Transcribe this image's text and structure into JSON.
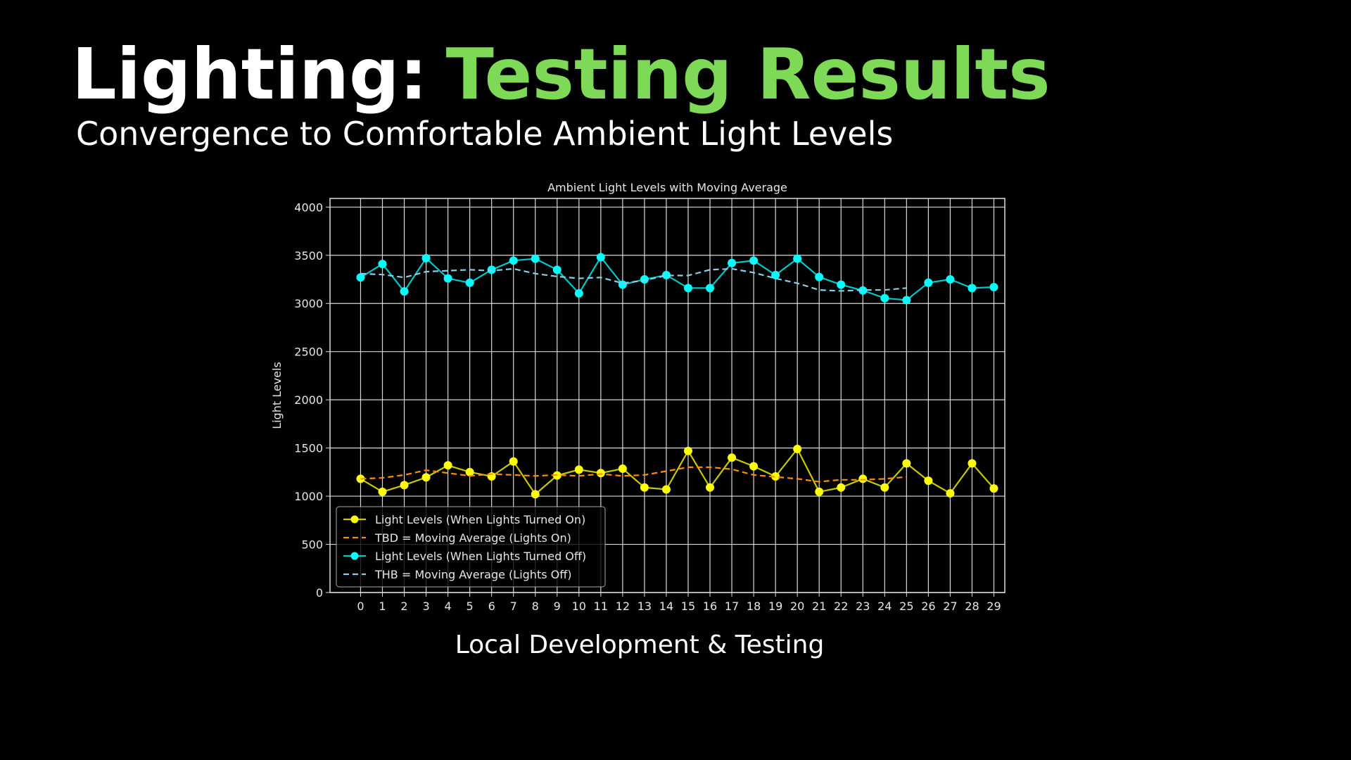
{
  "slide": {
    "title_prefix": "Lighting:",
    "title_highlight": "Testing Results",
    "subtitle": "Convergence to Comfortable Ambient Light Levels",
    "caption": "Local Development & Testing"
  },
  "chart_data": {
    "type": "line",
    "title": "Ambient Light Levels with Moving Average",
    "y_label": "Light Levels",
    "x": [
      0,
      1,
      2,
      3,
      4,
      5,
      6,
      7,
      8,
      9,
      10,
      11,
      12,
      13,
      14,
      15,
      16,
      17,
      18,
      19,
      20,
      21,
      22,
      23,
      24,
      25,
      26,
      27,
      28,
      29
    ],
    "xlim": [
      -1.4,
      29.5
    ],
    "xticks": [
      0,
      1,
      2,
      3,
      4,
      5,
      6,
      7,
      8,
      9,
      10,
      11,
      12,
      13,
      14,
      15,
      16,
      17,
      18,
      19,
      20,
      21,
      22,
      23,
      24,
      25,
      26,
      27,
      28,
      29
    ],
    "ylim": [
      0,
      4090
    ],
    "yticks": [
      0,
      500,
      1000,
      1500,
      2000,
      2500,
      3000,
      3500,
      4000
    ],
    "grid": true,
    "legend": "lower left",
    "series": [
      {
        "name": "Light Levels (When Lights Turned On)",
        "color": "#ffff00",
        "line_color": "#c8c800",
        "style": "solid",
        "marker": true,
        "values": [
          1180,
          1045,
          1115,
          1195,
          1320,
          1250,
          1205,
          1360,
          1020,
          1215,
          1275,
          1240,
          1285,
          1090,
          1070,
          1470,
          1090,
          1400,
          1310,
          1205,
          1490,
          1045,
          1090,
          1180,
          1090,
          1340,
          1160,
          1030,
          1340,
          1080
        ]
      },
      {
        "name": "TBD = Moving Average (Lights On)",
        "color": "#ff8c00",
        "style": "dashed",
        "marker": false,
        "values": [
          1180,
          1190,
          1220,
          1270,
          1240,
          1210,
          1230,
          1220,
          1210,
          1220,
          1210,
          1230,
          1210,
          1220,
          1260,
          1300,
          1300,
          1280,
          1220,
          1200,
          1180,
          1150,
          1170,
          1170,
          1180,
          1200,
          null,
          null,
          null,
          null
        ]
      },
      {
        "name": "Light Levels (When Lights Turned Off)",
        "color": "#00ffff",
        "line_color": "#00c8c8",
        "style": "solid",
        "marker": true,
        "values": [
          3270,
          3410,
          3125,
          3470,
          3260,
          3215,
          3350,
          3445,
          3465,
          3350,
          3105,
          3480,
          3195,
          3250,
          3295,
          3160,
          3160,
          3420,
          3445,
          3295,
          3465,
          3275,
          3195,
          3135,
          3055,
          3035,
          3215,
          3250,
          3160,
          3170
        ]
      },
      {
        "name": "THB = Moving Average (Lights Off)",
        "color": "#87ceeb",
        "style": "dashed",
        "marker": false,
        "values": [
          3310,
          3300,
          3270,
          3330,
          3340,
          3350,
          3340,
          3360,
          3310,
          3280,
          3260,
          3270,
          3210,
          3240,
          3290,
          3290,
          3350,
          3360,
          3320,
          3260,
          3210,
          3140,
          3130,
          3140,
          3140,
          3160,
          null,
          null,
          null,
          null
        ]
      }
    ]
  }
}
